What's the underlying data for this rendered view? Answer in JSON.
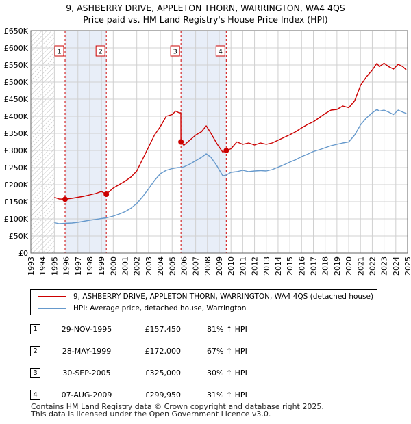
{
  "title_line1": "9, ASHBERRY DRIVE, APPLETON THORN, WARRINGTON, WA4 4QS",
  "title_line2": "Price paid vs. HM Land Registry's House Price Index (HPI)",
  "colors": {
    "property": "#cc0000",
    "hpi": "#6699cc",
    "shade": "#e8eef8",
    "marker_line": "#cc0000",
    "grid": "#d0d0d0"
  },
  "chart_data": {
    "type": "line",
    "title": "9, ASHBERRY DRIVE, APPLETON THORN, WARRINGTON, WA4 4QS — Price paid vs. HM Land Registry's House Price Index (HPI)",
    "xlabel": "",
    "ylabel": "",
    "xlim": [
      1993,
      2025
    ],
    "ylim": [
      0,
      650000
    ],
    "x_ticks": [
      1993,
      1994,
      1995,
      1996,
      1997,
      1998,
      1999,
      2000,
      2001,
      2002,
      2003,
      2004,
      2005,
      2006,
      2007,
      2008,
      2009,
      2010,
      2011,
      2012,
      2013,
      2014,
      2015,
      2016,
      2017,
      2018,
      2019,
      2020,
      2021,
      2022,
      2023,
      2024,
      2025
    ],
    "y_ticks": [
      {
        "value": 0,
        "label": "£0"
      },
      {
        "value": 50000,
        "label": "£50K"
      },
      {
        "value": 100000,
        "label": "£100K"
      },
      {
        "value": 150000,
        "label": "£150K"
      },
      {
        "value": 200000,
        "label": "£200K"
      },
      {
        "value": 250000,
        "label": "£250K"
      },
      {
        "value": 300000,
        "label": "£300K"
      },
      {
        "value": 350000,
        "label": "£350K"
      },
      {
        "value": 400000,
        "label": "£400K"
      },
      {
        "value": 450000,
        "label": "£450K"
      },
      {
        "value": 500000,
        "label": "£500K"
      },
      {
        "value": 550000,
        "label": "£550K"
      },
      {
        "value": 600000,
        "label": "£600K"
      },
      {
        "value": 650000,
        "label": "£650K"
      }
    ],
    "grid": true,
    "hatched_before": 1995.0,
    "shaded_periods": [
      [
        1995.91,
        1999.41
      ],
      [
        2005.75,
        2009.6
      ]
    ],
    "series": [
      {
        "name": "9, ASHBERRY DRIVE, APPLETON THORN, WARRINGTON, WA4 4QS (detached house)",
        "color": "#cc0000",
        "x": [
          1995.0,
          1995.4,
          1995.91,
          1996.5,
          1997.0,
          1997.5,
          1998.0,
          1998.5,
          1999.0,
          1999.41,
          2000.0,
          2000.5,
          2001.0,
          2001.5,
          2002.0,
          2002.5,
          2003.0,
          2003.5,
          2004.0,
          2004.5,
          2005.0,
          2005.3,
          2005.6,
          2005.74,
          2005.75,
          2006.0,
          2006.5,
          2007.0,
          2007.5,
          2007.9,
          2008.3,
          2008.8,
          2009.3,
          2009.6,
          2010.0,
          2010.5,
          2011.0,
          2011.5,
          2012.0,
          2012.5,
          2013.0,
          2013.5,
          2014.0,
          2014.5,
          2015.0,
          2015.5,
          2016.0,
          2016.5,
          2017.0,
          2017.5,
          2018.0,
          2018.5,
          2019.0,
          2019.5,
          2020.0,
          2020.5,
          2021.0,
          2021.5,
          2022.0,
          2022.4,
          2022.6,
          2023.0,
          2023.4,
          2023.8,
          2024.2,
          2024.6,
          2024.9
        ],
        "y": [
          163000,
          158000,
          157450,
          160000,
          163000,
          166000,
          170000,
          174000,
          180000,
          172000,
          190000,
          200000,
          210000,
          222000,
          240000,
          275000,
          310000,
          345000,
          370000,
          400000,
          405000,
          415000,
          410000,
          410000,
          325000,
          315000,
          330000,
          345000,
          355000,
          372000,
          350000,
          320000,
          295000,
          299950,
          305000,
          325000,
          318000,
          322000,
          316000,
          322000,
          318000,
          322000,
          330000,
          338000,
          346000,
          355000,
          366000,
          376000,
          384000,
          396000,
          408000,
          418000,
          420000,
          430000,
          425000,
          445000,
          490000,
          515000,
          535000,
          555000,
          545000,
          555000,
          545000,
          538000,
          552000,
          545000,
          535000
        ]
      },
      {
        "name": "HPI: Average price, detached house, Warrington",
        "color": "#6699cc",
        "x": [
          1995.0,
          1995.4,
          1995.91,
          1996.5,
          1997.0,
          1997.5,
          1998.0,
          1998.5,
          1999.0,
          1999.41,
          2000.0,
          2000.5,
          2001.0,
          2001.5,
          2002.0,
          2002.5,
          2003.0,
          2003.5,
          2004.0,
          2004.5,
          2005.0,
          2005.5,
          2005.75,
          2006.0,
          2006.5,
          2007.0,
          2007.5,
          2007.9,
          2008.3,
          2008.8,
          2009.3,
          2009.6,
          2010.0,
          2010.5,
          2011.0,
          2011.5,
          2012.0,
          2012.5,
          2013.0,
          2013.5,
          2014.0,
          2014.5,
          2015.0,
          2015.5,
          2016.0,
          2016.5,
          2017.0,
          2017.5,
          2018.0,
          2018.5,
          2019.0,
          2019.5,
          2020.0,
          2020.5,
          2021.0,
          2021.5,
          2022.0,
          2022.4,
          2022.6,
          2023.0,
          2023.4,
          2023.8,
          2024.2,
          2024.6,
          2024.9
        ],
        "y": [
          89000,
          86000,
          87000,
          88000,
          90000,
          93000,
          96000,
          98500,
          101000,
          103000,
          108000,
          114000,
          121000,
          131000,
          145000,
          165000,
          188000,
          212000,
          232000,
          242000,
          247000,
          250000,
          250000,
          252000,
          260000,
          270000,
          280000,
          290000,
          280000,
          255000,
          226000,
          228000,
          236000,
          238000,
          242000,
          238000,
          240000,
          241000,
          240000,
          244000,
          251000,
          258000,
          266000,
          273000,
          282000,
          289000,
          297000,
          302000,
          308000,
          314000,
          318000,
          322000,
          325000,
          345000,
          375000,
          395000,
          410000,
          420000,
          415000,
          418000,
          412000,
          405000,
          418000,
          412000,
          408000
        ]
      }
    ],
    "sales": [
      {
        "label": "1",
        "x": 1995.91,
        "y": 157450
      },
      {
        "label": "2",
        "x": 1999.41,
        "y": 172000
      },
      {
        "label": "3",
        "x": 2005.75,
        "y": 325000
      },
      {
        "label": "4",
        "x": 2009.6,
        "y": 299950
      }
    ]
  },
  "legend": {
    "property_label": "9, ASHBERRY DRIVE, APPLETON THORN, WARRINGTON, WA4 4QS (detached house)",
    "hpi_label": "HPI: Average price, detached house, Warrington"
  },
  "transactions": [
    {
      "num": "1",
      "date": "29-NOV-1995",
      "price": "£157,450",
      "delta": "81% ↑ HPI"
    },
    {
      "num": "2",
      "date": "28-MAY-1999",
      "price": "£172,000",
      "delta": "67% ↑ HPI"
    },
    {
      "num": "3",
      "date": "30-SEP-2005",
      "price": "£325,000",
      "delta": "30% ↑ HPI"
    },
    {
      "num": "4",
      "date": "07-AUG-2009",
      "price": "£299,950",
      "delta": "31% ↑ HPI"
    }
  ],
  "footer": {
    "line1": "Contains HM Land Registry data © Crown copyright and database right 2025.",
    "line2": "This data is licensed under the Open Government Licence v3.0."
  }
}
